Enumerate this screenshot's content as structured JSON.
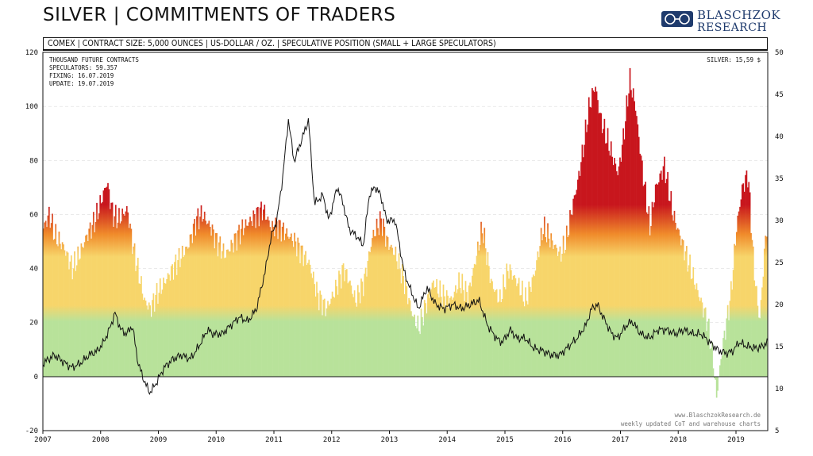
{
  "title": "SILVER | COMMITMENTS OF TRADERS",
  "subtitle": "COMEX | CONTRACT SIZE: 5,000 OUNCES | US-DOLLAR / OZ. | SPECULATIVE POSITION (SMALL + LARGE SPECULATORS)",
  "brand": {
    "line1": "BLASCHZOK",
    "line2": "RESEARCH",
    "icon": "ornament-logo-icon"
  },
  "info": {
    "line1": "THOUSAND FUTURE CONTRACTS",
    "line2": "SPECULATORS: 59.357",
    "line3": "FIXING: 16.07.2019",
    "line4": "UPDATE: 19.07.2019"
  },
  "price_label": "SILVER: 15,59 $",
  "footer": {
    "line1": "www.BlaschzokResearch.de",
    "line2": "weekly updated CoT and warehouse charts"
  },
  "colors": {
    "red": "#c8161d",
    "orange": "#f08a2a",
    "yellow": "#f7d56a",
    "green": "#b8e29a",
    "line": "#111111"
  },
  "chart_data": {
    "type": "area",
    "x_ticks": [
      "2007",
      "2008",
      "2009",
      "2010",
      "2011",
      "2012",
      "2013",
      "2014",
      "2015",
      "2016",
      "2017",
      "2018",
      "2019"
    ],
    "y_left": {
      "ticks": [
        -20,
        0,
        20,
        40,
        60,
        80,
        100,
        120
      ],
      "range": [
        -20,
        120
      ],
      "label": "THOUSAND FUTURE CONTRACTS"
    },
    "y_right": {
      "ticks": [
        5,
        10,
        15,
        20,
        25,
        30,
        35,
        40,
        45,
        50
      ],
      "range": [
        5,
        50
      ]
    },
    "grid": true,
    "series": [
      {
        "name": "SPECULATORS",
        "axis": "left",
        "points": [
          [
            2007.0,
            55
          ],
          [
            2007.1,
            60
          ],
          [
            2007.2,
            52
          ],
          [
            2007.35,
            48
          ],
          [
            2007.5,
            40
          ],
          [
            2007.6,
            44
          ],
          [
            2007.75,
            52
          ],
          [
            2007.9,
            58
          ],
          [
            2008.0,
            65
          ],
          [
            2008.1,
            72
          ],
          [
            2008.2,
            60
          ],
          [
            2008.3,
            58
          ],
          [
            2008.45,
            62
          ],
          [
            2008.55,
            48
          ],
          [
            2008.65,
            38
          ],
          [
            2008.75,
            28
          ],
          [
            2008.85,
            25
          ],
          [
            2008.95,
            30
          ],
          [
            2009.1,
            35
          ],
          [
            2009.3,
            42
          ],
          [
            2009.5,
            48
          ],
          [
            2009.65,
            58
          ],
          [
            2009.75,
            60
          ],
          [
            2009.9,
            55
          ],
          [
            2010.0,
            50
          ],
          [
            2010.15,
            45
          ],
          [
            2010.3,
            50
          ],
          [
            2010.45,
            55
          ],
          [
            2010.6,
            58
          ],
          [
            2010.8,
            62
          ],
          [
            2010.95,
            55
          ],
          [
            2011.05,
            56
          ],
          [
            2011.2,
            53
          ],
          [
            2011.35,
            50
          ],
          [
            2011.5,
            45
          ],
          [
            2011.6,
            42
          ],
          [
            2011.75,
            30
          ],
          [
            2011.9,
            25
          ],
          [
            2012.05,
            32
          ],
          [
            2012.2,
            40
          ],
          [
            2012.3,
            35
          ],
          [
            2012.4,
            28
          ],
          [
            2012.55,
            35
          ],
          [
            2012.7,
            52
          ],
          [
            2012.85,
            58
          ],
          [
            2012.95,
            50
          ],
          [
            2013.1,
            45
          ],
          [
            2013.25,
            35
          ],
          [
            2013.4,
            22
          ],
          [
            2013.5,
            18
          ],
          [
            2013.6,
            25
          ],
          [
            2013.75,
            35
          ],
          [
            2013.9,
            30
          ],
          [
            2014.05,
            28
          ],
          [
            2014.2,
            35
          ],
          [
            2014.35,
            30
          ],
          [
            2014.5,
            45
          ],
          [
            2014.6,
            55
          ],
          [
            2014.75,
            35
          ],
          [
            2014.9,
            28
          ],
          [
            2015.05,
            40
          ],
          [
            2015.2,
            35
          ],
          [
            2015.35,
            28
          ],
          [
            2015.5,
            38
          ],
          [
            2015.65,
            55
          ],
          [
            2015.8,
            50
          ],
          [
            2015.95,
            45
          ],
          [
            2016.05,
            50
          ],
          [
            2016.15,
            62
          ],
          [
            2016.25,
            72
          ],
          [
            2016.35,
            85
          ],
          [
            2016.45,
            100
          ],
          [
            2016.55,
            108
          ],
          [
            2016.65,
            95
          ],
          [
            2016.8,
            85
          ],
          [
            2016.95,
            75
          ],
          [
            2017.05,
            90
          ],
          [
            2017.15,
            110
          ],
          [
            2017.25,
            100
          ],
          [
            2017.35,
            80
          ],
          [
            2017.5,
            55
          ],
          [
            2017.6,
            70
          ],
          [
            2017.75,
            78
          ],
          [
            2017.9,
            60
          ],
          [
            2018.05,
            50
          ],
          [
            2018.2,
            40
          ],
          [
            2018.35,
            30
          ],
          [
            2018.5,
            20
          ],
          [
            2018.6,
            5
          ],
          [
            2018.65,
            -8
          ],
          [
            2018.75,
            10
          ],
          [
            2018.9,
            30
          ],
          [
            2019.0,
            55
          ],
          [
            2019.1,
            70
          ],
          [
            2019.2,
            75
          ],
          [
            2019.3,
            40
          ],
          [
            2019.4,
            20
          ],
          [
            2019.48,
            45
          ],
          [
            2019.53,
            59
          ]
        ]
      },
      {
        "name": "SILVER",
        "axis": "right",
        "points": [
          [
            2007.0,
            13
          ],
          [
            2007.1,
            13.5
          ],
          [
            2007.2,
            14
          ],
          [
            2007.35,
            13.2
          ],
          [
            2007.5,
            12.5
          ],
          [
            2007.65,
            13
          ],
          [
            2007.8,
            14
          ],
          [
            2007.95,
            14.5
          ],
          [
            2008.05,
            15.5
          ],
          [
            2008.15,
            17
          ],
          [
            2008.25,
            19
          ],
          [
            2008.35,
            17
          ],
          [
            2008.45,
            16.5
          ],
          [
            2008.55,
            17.5
          ],
          [
            2008.65,
            13
          ],
          [
            2008.75,
            11
          ],
          [
            2008.85,
            9.5
          ],
          [
            2008.95,
            10.5
          ],
          [
            2009.1,
            12.5
          ],
          [
            2009.25,
            13.5
          ],
          [
            2009.4,
            14
          ],
          [
            2009.55,
            13.5
          ],
          [
            2009.7,
            15
          ],
          [
            2009.85,
            17
          ],
          [
            2009.95,
            16.5
          ],
          [
            2010.1,
            16.5
          ],
          [
            2010.25,
            17.5
          ],
          [
            2010.4,
            18.5
          ],
          [
            2010.55,
            18
          ],
          [
            2010.7,
            19.5
          ],
          [
            2010.85,
            24
          ],
          [
            2010.95,
            28
          ],
          [
            2011.05,
            30
          ],
          [
            2011.15,
            35
          ],
          [
            2011.25,
            42
          ],
          [
            2011.35,
            37
          ],
          [
            2011.5,
            40
          ],
          [
            2011.6,
            42
          ],
          [
            2011.7,
            32
          ],
          [
            2011.85,
            33
          ],
          [
            2011.95,
            30
          ],
          [
            2012.1,
            34
          ],
          [
            2012.2,
            32
          ],
          [
            2012.3,
            29
          ],
          [
            2012.45,
            28
          ],
          [
            2012.55,
            27
          ],
          [
            2012.65,
            33
          ],
          [
            2012.75,
            34
          ],
          [
            2012.85,
            33
          ],
          [
            2012.95,
            30
          ],
          [
            2013.1,
            30
          ],
          [
            2013.25,
            24
          ],
          [
            2013.35,
            22
          ],
          [
            2013.5,
            19.5
          ],
          [
            2013.65,
            22
          ],
          [
            2013.8,
            20
          ],
          [
            2013.95,
            19.5
          ],
          [
            2014.1,
            20
          ],
          [
            2014.25,
            19.5
          ],
          [
            2014.4,
            20
          ],
          [
            2014.55,
            20.5
          ],
          [
            2014.7,
            17.5
          ],
          [
            2014.85,
            16
          ],
          [
            2014.95,
            15.5
          ],
          [
            2015.1,
            17
          ],
          [
            2015.2,
            16
          ],
          [
            2015.35,
            16
          ],
          [
            2015.5,
            14.8
          ],
          [
            2015.65,
            14.5
          ],
          [
            2015.8,
            14
          ],
          [
            2015.95,
            14
          ],
          [
            2016.1,
            15
          ],
          [
            2016.25,
            16
          ],
          [
            2016.4,
            17.5
          ],
          [
            2016.5,
            19.5
          ],
          [
            2016.6,
            20
          ],
          [
            2016.7,
            18.5
          ],
          [
            2016.85,
            16.5
          ],
          [
            2016.95,
            16
          ],
          [
            2017.1,
            17.5
          ],
          [
            2017.2,
            18
          ],
          [
            2017.35,
            16.5
          ],
          [
            2017.5,
            16
          ],
          [
            2017.65,
            17
          ],
          [
            2017.8,
            17
          ],
          [
            2017.95,
            16.5
          ],
          [
            2018.1,
            17
          ],
          [
            2018.25,
            16.5
          ],
          [
            2018.4,
            16.5
          ],
          [
            2018.55,
            15.5
          ],
          [
            2018.7,
            14.5
          ],
          [
            2018.85,
            14.2
          ],
          [
            2018.95,
            14.5
          ],
          [
            2019.05,
            15.5
          ],
          [
            2019.2,
            15
          ],
          [
            2019.35,
            14.8
          ],
          [
            2019.45,
            15
          ],
          [
            2019.55,
            15.6
          ]
        ]
      }
    ]
  }
}
